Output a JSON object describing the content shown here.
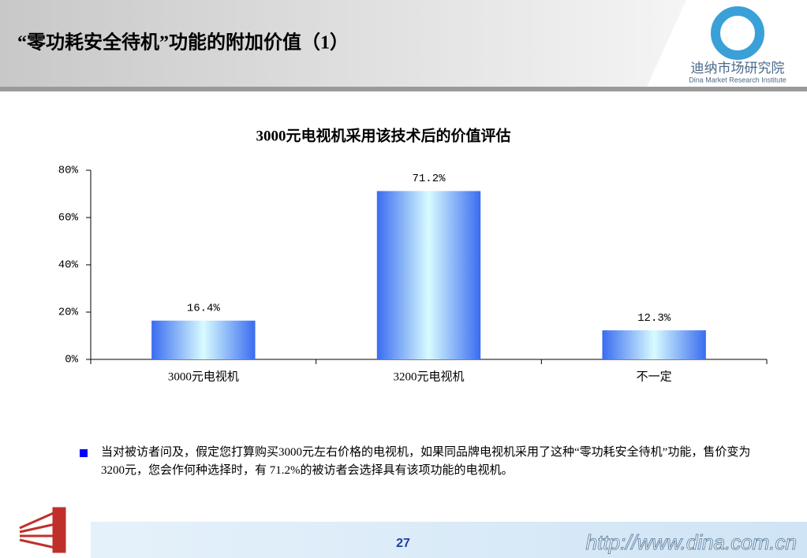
{
  "header": {
    "title": "“零功耗安全待机”功能的附加价值（1）",
    "logo_cn": "迪纳市场研究院",
    "logo_en": "Dina Market Research Institute"
  },
  "chart_data": {
    "type": "bar",
    "title": "3000元电视机采用该技术后的价值评估",
    "categories": [
      "3000元电视机",
      "3200元电视机",
      "不一定"
    ],
    "values": [
      16.4,
      71.2,
      12.3
    ],
    "value_labels": [
      "16.4%",
      "71.2%",
      "12.3%"
    ],
    "color": "#3a6cf0",
    "ylim": [
      0,
      80
    ],
    "yticks": [
      {
        "value": 0,
        "label": "0%"
      },
      {
        "value": 20,
        "label": "20%"
      },
      {
        "value": 40,
        "label": "40%"
      },
      {
        "value": 60,
        "label": "60%"
      },
      {
        "value": 80,
        "label": "80%"
      }
    ],
    "grid": false
  },
  "note": {
    "text": "当对被访者问及，假定您打算购买3000元左右价格的电视机，如果同品牌电视机采用了这种“零功耗安全待机”功能，售价变为3200元，您会作何种选择时，有 71.2%的被访者会选择具有该项功能的电视机。"
  },
  "footer": {
    "page": "27",
    "url": "http://www.dina.com.cn"
  }
}
